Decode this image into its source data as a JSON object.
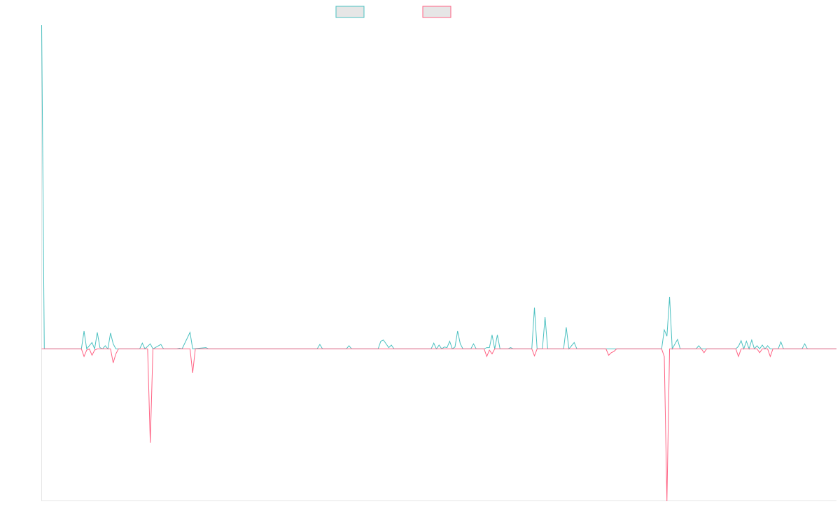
{
  "chart_data": {
    "type": "line",
    "x_count": 300,
    "ylim": [
      -240,
      510
    ],
    "grid": false,
    "legend_position": "top",
    "series": [
      {
        "color": "#4bc0c0",
        "fill": "#e6e6e6",
        "points": [
          [
            0,
            510
          ],
          [
            1,
            0
          ],
          [
            15,
            0
          ],
          [
            16,
            28
          ],
          [
            17,
            0
          ],
          [
            19,
            10
          ],
          [
            20,
            0
          ],
          [
            21,
            26
          ],
          [
            22,
            2
          ],
          [
            23,
            0
          ],
          [
            24,
            5
          ],
          [
            25,
            0
          ],
          [
            26,
            25
          ],
          [
            27,
            8
          ],
          [
            28,
            0
          ],
          [
            37,
            0
          ],
          [
            38,
            9
          ],
          [
            39,
            0
          ],
          [
            41,
            8
          ],
          [
            42,
            0
          ],
          [
            45,
            7
          ],
          [
            46,
            0
          ],
          [
            51,
            0
          ],
          [
            52,
            1
          ],
          [
            53,
            0
          ],
          [
            56,
            26
          ],
          [
            57,
            0
          ],
          [
            62,
            2
          ],
          [
            63,
            0
          ],
          [
            104,
            0
          ],
          [
            105,
            7
          ],
          [
            106,
            0
          ],
          [
            115,
            0
          ],
          [
            116,
            5
          ],
          [
            117,
            0
          ],
          [
            127,
            0
          ],
          [
            128,
            12
          ],
          [
            129,
            14
          ],
          [
            130,
            8
          ],
          [
            131,
            2
          ],
          [
            132,
            6
          ],
          [
            133,
            0
          ],
          [
            147,
            0
          ],
          [
            148,
            9
          ],
          [
            149,
            0
          ],
          [
            150,
            6
          ],
          [
            151,
            0
          ],
          [
            152,
            3
          ],
          [
            153,
            2
          ],
          [
            154,
            12
          ],
          [
            155,
            0
          ],
          [
            156,
            3
          ],
          [
            157,
            28
          ],
          [
            158,
            8
          ],
          [
            159,
            0
          ],
          [
            161,
            0
          ],
          [
            162,
            0
          ],
          [
            163,
            8
          ],
          [
            164,
            0
          ],
          [
            167,
            0
          ],
          [
            168,
            2
          ],
          [
            169,
            2
          ],
          [
            170,
            22
          ],
          [
            171,
            0
          ],
          [
            172,
            22
          ],
          [
            173,
            0
          ],
          [
            176,
            0
          ],
          [
            177,
            2
          ],
          [
            178,
            0
          ],
          [
            185,
            0
          ],
          [
            186,
            65
          ],
          [
            187,
            0
          ],
          [
            189,
            0
          ],
          [
            190,
            50
          ],
          [
            191,
            0
          ],
          [
            197,
            0
          ],
          [
            198,
            34
          ],
          [
            199,
            0
          ],
          [
            200,
            5
          ],
          [
            201,
            10
          ],
          [
            202,
            0
          ],
          [
            234,
            0
          ],
          [
            235,
            30
          ],
          [
            236,
            20
          ],
          [
            237,
            82
          ],
          [
            238,
            0
          ],
          [
            240,
            15
          ],
          [
            241,
            0
          ],
          [
            247,
            0
          ],
          [
            248,
            5
          ],
          [
            249,
            0
          ],
          [
            262,
            0
          ],
          [
            263,
            4
          ],
          [
            264,
            13
          ],
          [
            265,
            0
          ],
          [
            266,
            12
          ],
          [
            267,
            0
          ],
          [
            268,
            14
          ],
          [
            269,
            0
          ],
          [
            270,
            5
          ],
          [
            271,
            0
          ],
          [
            272,
            6
          ],
          [
            273,
            0
          ],
          [
            274,
            5
          ],
          [
            275,
            0
          ],
          [
            278,
            0
          ],
          [
            279,
            11
          ],
          [
            280,
            0
          ],
          [
            287,
            0
          ],
          [
            288,
            8
          ],
          [
            289,
            0
          ],
          [
            300,
            0
          ]
        ]
      },
      {
        "color": "#ff6384",
        "fill": "#e6e6e6",
        "points": [
          [
            0,
            0
          ],
          [
            15,
            0
          ],
          [
            16,
            -12
          ],
          [
            17,
            -2
          ],
          [
            18,
            0
          ],
          [
            19,
            -10
          ],
          [
            20,
            -2
          ],
          [
            21,
            0
          ],
          [
            26,
            0
          ],
          [
            27,
            -22
          ],
          [
            28,
            -8
          ],
          [
            29,
            0
          ],
          [
            40,
            0
          ],
          [
            41,
            -148
          ],
          [
            42,
            0
          ],
          [
            56,
            0
          ],
          [
            57,
            -38
          ],
          [
            58,
            0
          ],
          [
            167,
            0
          ],
          [
            168,
            -12
          ],
          [
            169,
            -2
          ],
          [
            170,
            -8
          ],
          [
            171,
            0
          ],
          [
            185,
            0
          ],
          [
            186,
            -11
          ],
          [
            187,
            0
          ],
          [
            213,
            0
          ],
          [
            214,
            -10
          ],
          [
            215,
            -6
          ],
          [
            216,
            -4
          ],
          [
            217,
            0
          ],
          [
            233,
            0
          ],
          [
            234,
            0
          ],
          [
            235,
            -12
          ],
          [
            236,
            -240
          ],
          [
            237,
            0
          ],
          [
            249,
            0
          ],
          [
            250,
            -6
          ],
          [
            251,
            0
          ],
          [
            262,
            0
          ],
          [
            263,
            -12
          ],
          [
            264,
            0
          ],
          [
            270,
            0
          ],
          [
            271,
            -6
          ],
          [
            272,
            0
          ],
          [
            274,
            0
          ],
          [
            275,
            -12
          ],
          [
            276,
            0
          ],
          [
            300,
            0
          ]
        ]
      }
    ]
  }
}
